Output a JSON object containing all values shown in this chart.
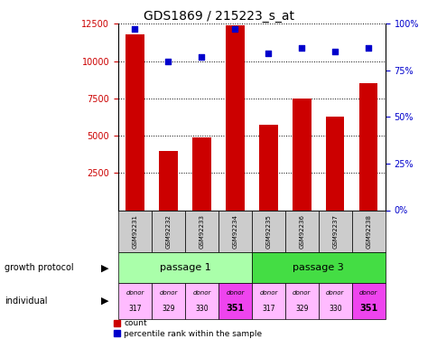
{
  "title": "GDS1869 / 215223_s_at",
  "samples": [
    "GSM92231",
    "GSM92232",
    "GSM92233",
    "GSM92234",
    "GSM92235",
    "GSM92236",
    "GSM92237",
    "GSM92238"
  ],
  "counts": [
    11800,
    4000,
    4900,
    12400,
    5700,
    7500,
    6300,
    8500
  ],
  "percentiles": [
    97,
    80,
    82,
    97,
    84,
    87,
    85,
    87
  ],
  "ylim_left": [
    0,
    12500
  ],
  "ylim_right": [
    0,
    100
  ],
  "yticks_left": [
    2500,
    5000,
    7500,
    10000,
    12500
  ],
  "yticks_right": [
    0,
    25,
    50,
    75,
    100
  ],
  "ytick_labels_right": [
    "0%",
    "25%",
    "50%",
    "75%",
    "100%"
  ],
  "bar_color": "#cc0000",
  "dot_color": "#0000cc",
  "sample_box_color": "#cccccc",
  "passage1_color": "#aaffaa",
  "passage3_color": "#44dd44",
  "donor_colors": [
    "#ffbbff",
    "#ffbbff",
    "#ffbbff",
    "#ee44ee",
    "#ffbbff",
    "#ffbbff",
    "#ffbbff",
    "#ee44ee"
  ],
  "donor_bold": [
    false,
    false,
    false,
    true,
    false,
    false,
    false,
    true
  ],
  "donor_numbers": [
    "317",
    "329",
    "330",
    "351",
    "317",
    "329",
    "330",
    "351"
  ],
  "passage_labels": [
    "passage 1",
    "passage 3"
  ],
  "label_color_left": "#cc0000",
  "label_color_right": "#0000cc",
  "legend_count_color": "#cc0000",
  "legend_pct_color": "#0000cc"
}
